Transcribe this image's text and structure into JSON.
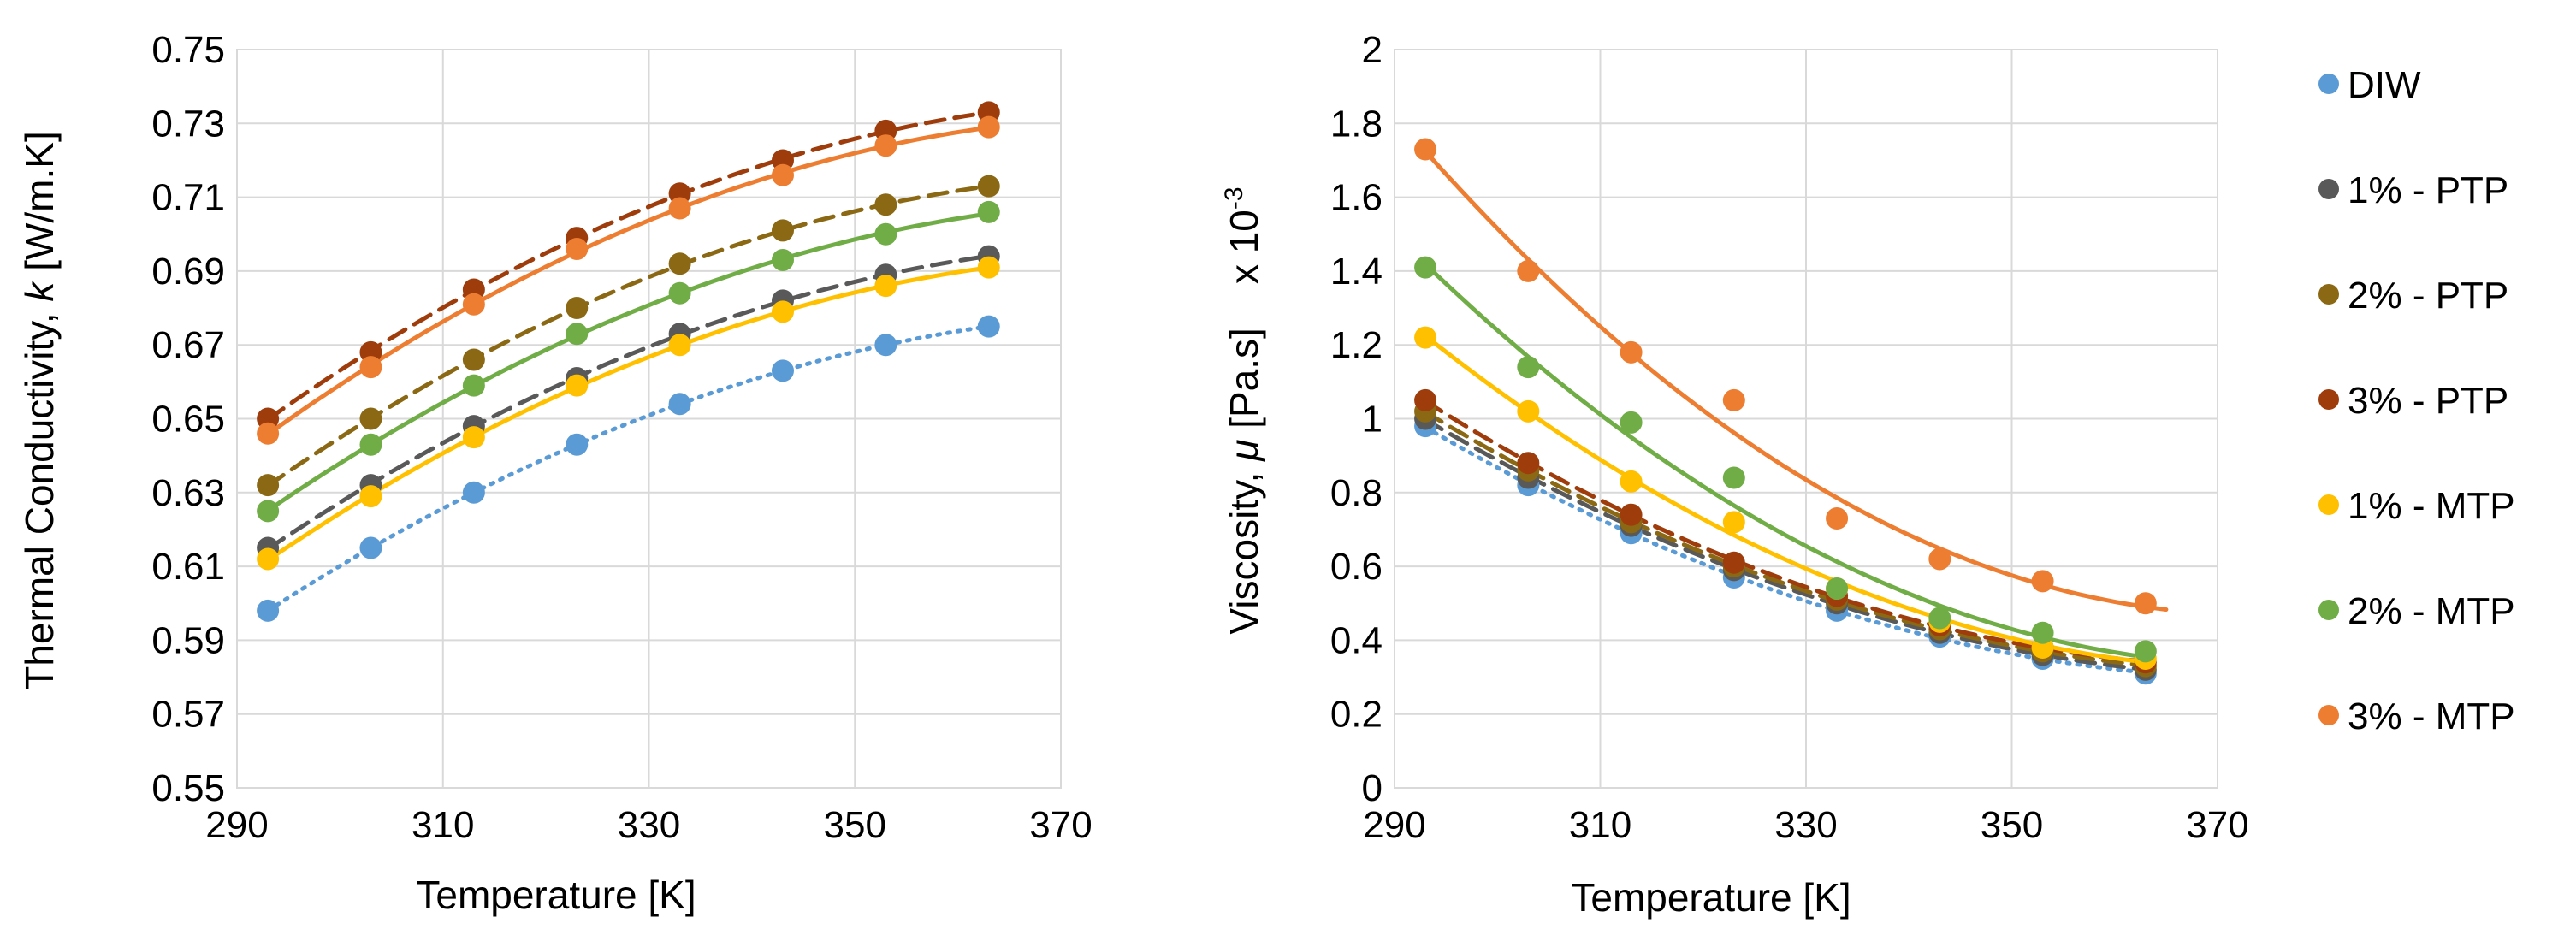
{
  "colors": {
    "DIW": "#5B9BD5",
    "PTP1": "#595959",
    "PTP2": "#8B6914",
    "PTP3": "#9E3C0C",
    "MTP1": "#FFC000",
    "MTP2": "#70AD47",
    "MTP3": "#ED7D31"
  },
  "legend": {
    "items": [
      {
        "label": "DIW",
        "color_key": "DIW"
      },
      {
        "label": "1% - PTP",
        "color_key": "PTP1"
      },
      {
        "label": "2% - PTP",
        "color_key": "PTP2"
      },
      {
        "label": "3% - PTP",
        "color_key": "PTP3"
      },
      {
        "label": "1% - MTP",
        "color_key": "MTP1"
      },
      {
        "label": "2% - MTP",
        "color_key": "MTP2"
      },
      {
        "label": "3% - MTP",
        "color_key": "MTP3"
      }
    ]
  },
  "chart_data": [
    {
      "type": "scatter",
      "name": "thermal-conductivity",
      "title": "",
      "xlabel": "Temperature [K]",
      "ylabel_prefix": "Thermal Conductivity, ",
      "ylabel_symbol": "k",
      "ylabel_suffix": " [W/m.K]",
      "xlim": [
        290,
        370
      ],
      "ylim": [
        0.55,
        0.75
      ],
      "xticks": [
        290,
        310,
        330,
        350,
        370
      ],
      "xtick_labels": [
        "290",
        "310",
        "330",
        "350",
        "370"
      ],
      "yticks": [
        0.55,
        0.57,
        0.59,
        0.61,
        0.63,
        0.65,
        0.67,
        0.69,
        0.71,
        0.73,
        0.75
      ],
      "ytick_labels": [
        "0.55",
        "0.57",
        "0.59",
        "0.61",
        "0.63",
        "0.65",
        "0.67",
        "0.69",
        "0.71",
        "0.73",
        "0.75"
      ],
      "grid": true,
      "x": [
        293,
        303,
        313,
        323,
        333,
        343,
        353,
        363
      ],
      "series": [
        {
          "name": "DIW",
          "color_key": "DIW",
          "line": "dotted",
          "values": [
            0.598,
            0.615,
            0.63,
            0.643,
            0.654,
            0.663,
            0.67,
            0.675
          ]
        },
        {
          "name": "1% - PTP",
          "color_key": "PTP1",
          "line": "dashed",
          "values": [
            0.615,
            0.632,
            0.648,
            0.661,
            0.673,
            0.682,
            0.689,
            0.694
          ]
        },
        {
          "name": "2% - PTP",
          "color_key": "PTP2",
          "line": "dashed",
          "values": [
            0.632,
            0.65,
            0.666,
            0.68,
            0.692,
            0.701,
            0.708,
            0.713
          ]
        },
        {
          "name": "3% - PTP",
          "color_key": "PTP3",
          "line": "dashed",
          "values": [
            0.65,
            0.668,
            0.685,
            0.699,
            0.711,
            0.72,
            0.728,
            0.733
          ]
        },
        {
          "name": "1% - MTP",
          "color_key": "MTP1",
          "line": "solid",
          "values": [
            0.612,
            0.629,
            0.645,
            0.659,
            0.67,
            0.679,
            0.686,
            0.691
          ]
        },
        {
          "name": "2% - MTP",
          "color_key": "MTP2",
          "line": "solid",
          "values": [
            0.625,
            0.643,
            0.659,
            0.673,
            0.684,
            0.693,
            0.7,
            0.706
          ]
        },
        {
          "name": "3% - MTP",
          "color_key": "MTP3",
          "line": "solid",
          "values": [
            0.646,
            0.664,
            0.681,
            0.696,
            0.707,
            0.716,
            0.724,
            0.729
          ]
        }
      ]
    },
    {
      "type": "scatter",
      "name": "viscosity",
      "title": "",
      "xlabel": "Temperature [K]",
      "ylabel_prefix": "Viscosity, ",
      "ylabel_symbol": "μ",
      "ylabel_suffix": " [Pa.s]    x 10",
      "ylabel_exponent": "-3",
      "xlim": [
        290,
        370
      ],
      "ylim": [
        0,
        2
      ],
      "xticks": [
        290,
        310,
        330,
        350,
        370
      ],
      "xtick_labels": [
        "290",
        "310",
        "330",
        "350",
        "370"
      ],
      "yticks": [
        0,
        0.2,
        0.4,
        0.6,
        0.8,
        1,
        1.2,
        1.4,
        1.6,
        1.8,
        2
      ],
      "ytick_labels": [
        "0",
        "0.2",
        "0.4",
        "0.6",
        "0.8",
        "1",
        "1.2",
        "1.4",
        "1.6",
        "1.8",
        "2"
      ],
      "grid": true,
      "x": [
        293,
        303,
        313,
        323,
        333,
        343,
        353,
        363
      ],
      "series": [
        {
          "name": "DIW",
          "color_key": "DIW",
          "line": "dotted",
          "values": [
            0.98,
            0.82,
            0.69,
            0.57,
            0.48,
            0.41,
            0.35,
            0.31
          ]
        },
        {
          "name": "1% - PTP",
          "color_key": "PTP1",
          "line": "dashed",
          "values": [
            1.0,
            0.84,
            0.71,
            0.59,
            0.5,
            0.42,
            0.36,
            0.32
          ]
        },
        {
          "name": "2% - PTP",
          "color_key": "PTP2",
          "line": "dashed",
          "values": [
            1.02,
            0.86,
            0.72,
            0.6,
            0.51,
            0.43,
            0.37,
            0.33
          ]
        },
        {
          "name": "3% - PTP",
          "color_key": "PTP3",
          "line": "dashed",
          "values": [
            1.05,
            0.88,
            0.74,
            0.61,
            0.52,
            0.44,
            0.38,
            0.34
          ]
        },
        {
          "name": "1% - MTP",
          "color_key": "MTP1",
          "line": "solid",
          "values": [
            1.22,
            1.02,
            0.83,
            0.72,
            0.54,
            0.45,
            0.38,
            0.35
          ]
        },
        {
          "name": "2% - MTP",
          "color_key": "MTP2",
          "line": "solid",
          "values": [
            1.41,
            1.14,
            0.99,
            0.84,
            0.54,
            0.46,
            0.42,
            0.37
          ]
        },
        {
          "name": "3% - MTP",
          "color_key": "MTP3",
          "line": "solid",
          "values": [
            1.73,
            1.4,
            1.18,
            1.05,
            0.73,
            0.62,
            0.56,
            0.5
          ]
        }
      ]
    }
  ]
}
